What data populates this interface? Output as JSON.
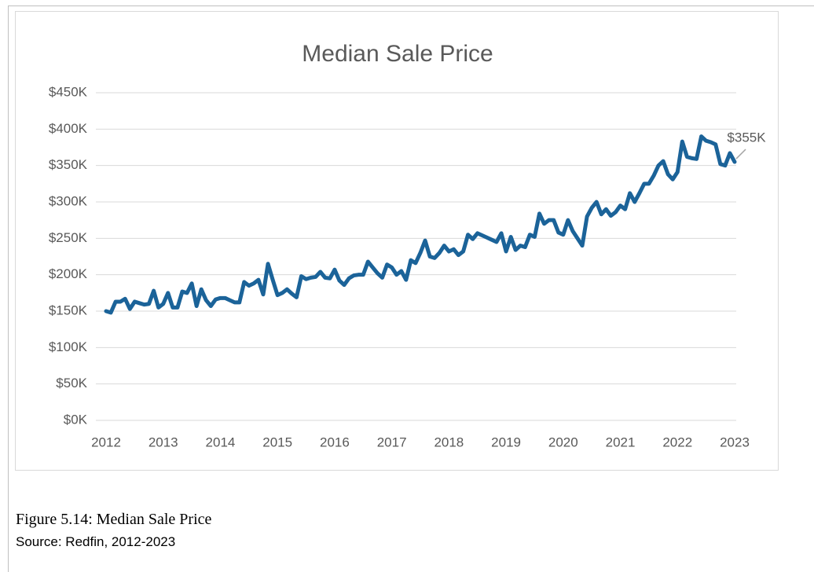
{
  "chart_data": {
    "type": "line",
    "title": "Median Sale Price",
    "categories": [
      "2012",
      null,
      null,
      null,
      null,
      null,
      null,
      null,
      null,
      null,
      null,
      null,
      "2013",
      null,
      null,
      null,
      null,
      null,
      null,
      null,
      null,
      null,
      null,
      null,
      "2014",
      null,
      null,
      null,
      null,
      null,
      null,
      null,
      null,
      null,
      null,
      null,
      "2015",
      null,
      null,
      null,
      null,
      null,
      null,
      null,
      null,
      null,
      null,
      null,
      "2016",
      null,
      null,
      null,
      null,
      null,
      null,
      null,
      null,
      null,
      null,
      null,
      "2017",
      null,
      null,
      null,
      null,
      null,
      null,
      null,
      null,
      null,
      null,
      null,
      "2018",
      null,
      null,
      null,
      null,
      null,
      null,
      null,
      null,
      null,
      null,
      null,
      "2019",
      null,
      null,
      null,
      null,
      null,
      null,
      null,
      null,
      null,
      null,
      null,
      "2020",
      null,
      null,
      null,
      null,
      null,
      null,
      null,
      null,
      null,
      null,
      null,
      "2021",
      null,
      null,
      null,
      null,
      null,
      null,
      null,
      null,
      null,
      null,
      null,
      "2022",
      null,
      null,
      null,
      null,
      null,
      null,
      null,
      null,
      null,
      null,
      null,
      "2023"
    ],
    "series": [
      {
        "name": "Median Sale Price",
        "color": "#1b6399",
        "values": [
          150,
          148,
          163,
          163,
          167,
          153,
          163,
          161,
          159,
          160,
          178,
          155,
          160,
          175,
          155,
          155,
          177,
          175,
          188,
          157,
          180,
          165,
          157,
          166,
          168,
          168,
          165,
          162,
          162,
          190,
          185,
          188,
          193,
          173,
          215,
          193,
          172,
          175,
          180,
          174,
          169,
          198,
          194,
          196,
          197,
          204,
          196,
          195,
          207,
          192,
          186,
          195,
          199,
          200,
          200,
          218,
          210,
          202,
          196,
          214,
          210,
          200,
          205,
          193,
          220,
          216,
          230,
          247,
          225,
          223,
          230,
          240,
          232,
          235,
          227,
          232,
          255,
          249,
          257,
          254,
          251,
          248,
          245,
          257,
          232,
          252,
          234,
          240,
          238,
          255,
          252,
          284,
          270,
          275,
          275,
          258,
          255,
          275,
          260,
          250,
          240,
          280,
          292,
          300,
          283,
          290,
          281,
          286,
          295,
          290,
          312,
          300,
          312,
          325,
          325,
          336,
          350,
          356,
          338,
          331,
          341,
          383,
          362,
          360,
          359,
          390,
          384,
          382,
          379,
          352,
          350,
          367,
          355
        ],
        "value_labels": [
          null,
          null,
          null,
          null,
          null,
          null,
          null,
          null,
          null,
          null,
          null,
          null,
          null,
          null,
          null,
          null,
          null,
          null,
          null,
          null,
          null,
          null,
          null,
          null,
          null,
          null,
          null,
          null,
          null,
          null,
          null,
          null,
          null,
          null,
          null,
          null,
          null,
          null,
          null,
          null,
          null,
          null,
          null,
          null,
          null,
          null,
          null,
          null,
          null,
          null,
          null,
          null,
          null,
          null,
          null,
          null,
          null,
          null,
          null,
          null,
          null,
          null,
          null,
          null,
          null,
          null,
          null,
          null,
          null,
          null,
          null,
          null,
          null,
          null,
          null,
          null,
          null,
          null,
          null,
          null,
          null,
          null,
          null,
          null,
          null,
          null,
          null,
          null,
          null,
          null,
          null,
          null,
          null,
          null,
          null,
          null,
          null,
          null,
          null,
          null,
          null,
          null,
          null,
          null,
          null,
          null,
          null,
          null,
          null,
          null,
          null,
          null,
          null,
          null,
          null,
          null,
          null,
          null,
          null,
          null,
          null,
          null,
          null,
          null,
          null,
          null,
          null,
          null,
          null,
          null,
          null,
          null,
          "$355K"
        ]
      }
    ],
    "ylim": [
      0,
      450
    ],
    "yticks": [
      {
        "value": 0,
        "label": "$0K"
      },
      {
        "value": 50,
        "label": "$50K"
      },
      {
        "value": 100,
        "label": "$100K"
      },
      {
        "value": 150,
        "label": "$150K"
      },
      {
        "value": 200,
        "label": "$200K"
      },
      {
        "value": 250,
        "label": "$250K"
      },
      {
        "value": 300,
        "label": "$300K"
      },
      {
        "value": 350,
        "label": "$350K"
      },
      {
        "value": 400,
        "label": "$400K"
      },
      {
        "value": 450,
        "label": "$450K"
      }
    ],
    "grid": true
  },
  "figure": {
    "caption": "Figure 5.14: Median Sale Price",
    "source": "Source: Redfin, 2012-2023"
  }
}
